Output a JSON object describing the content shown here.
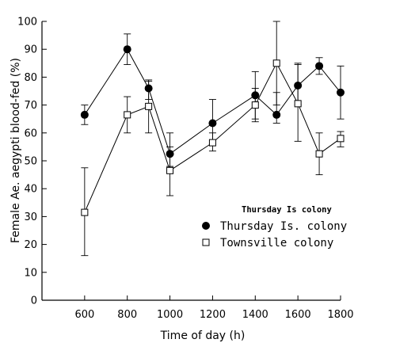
{
  "chart_data": {
    "type": "line",
    "title": "",
    "annotation": "Thursday Is colony",
    "xlabel": "Time of day (h)",
    "ylabel": "Female Ae. aegypti blood-fed (%)",
    "xlim": [
      400,
      1800
    ],
    "ylim": [
      0,
      100
    ],
    "xticks": [
      600,
      800,
      1000,
      1200,
      1400,
      1600,
      1800
    ],
    "yticks": [
      0,
      10,
      20,
      30,
      40,
      50,
      60,
      70,
      80,
      90,
      100
    ],
    "grid": false,
    "legend_position": "right-middle",
    "series": [
      {
        "name": "Thursday Is. colony",
        "marker": "filled-circle",
        "color": "#000000",
        "x": [
          600,
          800,
          900,
          1000,
          1200,
          1400,
          1500,
          1600,
          1700,
          1800
        ],
        "y": [
          66.5,
          90,
          76,
          52.5,
          63.5,
          73.5,
          66.5,
          77,
          84,
          74.5
        ],
        "err_low": [
          63,
          84.5,
          72,
          48,
          56,
          65,
          63.5,
          70,
          81,
          65
        ],
        "err_high": [
          70,
          95.5,
          79,
          60,
          72,
          82,
          74.5,
          85,
          87,
          84
        ]
      },
      {
        "name": "Townsville colony",
        "marker": "open-square",
        "color": "#000000",
        "x": [
          600,
          800,
          900,
          1000,
          1200,
          1400,
          1500,
          1600,
          1700,
          1800
        ],
        "y": [
          31.5,
          66.5,
          69.5,
          46.5,
          56.5,
          70,
          85,
          70.5,
          52.5,
          58
        ],
        "err_low": [
          16,
          60,
          60,
          37.5,
          53.5,
          64,
          70,
          57,
          45,
          55
        ],
        "err_high": [
          47.5,
          73,
          78.5,
          55,
          60,
          76,
          100,
          84.5,
          60,
          60.5
        ]
      }
    ]
  }
}
